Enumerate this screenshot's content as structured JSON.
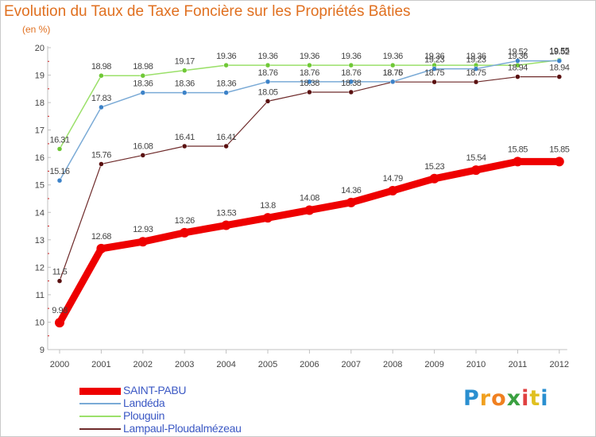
{
  "header": {
    "title": "Evolution du Taux de Taxe Foncière sur les Propriétés Bâties",
    "unit": "(en %)"
  },
  "logo": {
    "letters": [
      "P",
      "r",
      "o",
      "x",
      "i",
      "t",
      "i"
    ],
    "colors": [
      "#2a8fd0",
      "#f0a020",
      "#f08020",
      "#3aa040",
      "#e04040",
      "#e0c020",
      "#2a8fd0"
    ]
  },
  "chart_data": {
    "type": "line",
    "x": [
      "2000",
      "2001",
      "2002",
      "2003",
      "2004",
      "2005",
      "2006",
      "2007",
      "2008",
      "2009",
      "2010",
      "2011",
      "2012"
    ],
    "ylim": [
      9,
      20
    ],
    "yticks": [
      "9",
      "10",
      "11",
      "12",
      "13",
      "14",
      "15",
      "16",
      "17",
      "18",
      "19",
      "20"
    ],
    "grid": false,
    "legend_position": "bottom-left",
    "series": [
      {
        "name": "SAINT-PABU",
        "color": "#ee0000",
        "width": 9,
        "marker": "#ee0000",
        "values": [
          9.98,
          12.68,
          12.93,
          13.26,
          13.53,
          13.8,
          14.08,
          14.36,
          14.79,
          15.23,
          15.54,
          15.85,
          15.85
        ],
        "labels": [
          "9.98",
          "12.68",
          "12.93",
          "13.26",
          "13.53",
          "13.8",
          "14.08",
          "14.36",
          "14.79",
          "15.23",
          "15.54",
          "15.85",
          "15.85"
        ]
      },
      {
        "name": "Landéda",
        "color": "#7aaad6",
        "width": 1.5,
        "marker": "#3c82c8",
        "values": [
          15.16,
          17.83,
          18.36,
          18.36,
          18.36,
          18.76,
          18.76,
          18.76,
          18.76,
          19.23,
          19.23,
          19.52,
          19.52
        ],
        "labels": [
          "15.16",
          "17.83",
          "18.36",
          "18.36",
          "18.36",
          "18.76",
          "18.76",
          "18.76",
          "18.76",
          "19.23",
          "19.23",
          "19.52",
          "19.52"
        ]
      },
      {
        "name": "Plouguin",
        "color": "#9be06a",
        "width": 1.5,
        "marker": "#6fc836",
        "values": [
          16.31,
          18.98,
          18.98,
          19.17,
          19.36,
          19.36,
          19.36,
          19.36,
          19.36,
          19.36,
          19.36,
          19.36,
          19.55
        ],
        "labels": [
          "16.31",
          "18.98",
          "18.98",
          "19.17",
          "19.36",
          "19.36",
          "19.36",
          "19.36",
          "19.36",
          "19.36",
          "19.36",
          "19.36",
          "19.55"
        ]
      },
      {
        "name": "Lampaul-Ploudalmézeau",
        "color": "#6e2a2a",
        "width": 1.2,
        "marker": "#5a1010",
        "values": [
          11.5,
          15.76,
          16.08,
          16.41,
          16.41,
          18.05,
          18.38,
          18.38,
          18.75,
          18.75,
          18.75,
          18.94,
          18.94
        ],
        "labels": [
          "11.5",
          "15.76",
          "16.08",
          "16.41",
          "16.41",
          "18.05",
          "18.38",
          "18.38",
          "18.75",
          "18.75",
          "18.75",
          "18.94",
          "18.94"
        ]
      }
    ]
  }
}
